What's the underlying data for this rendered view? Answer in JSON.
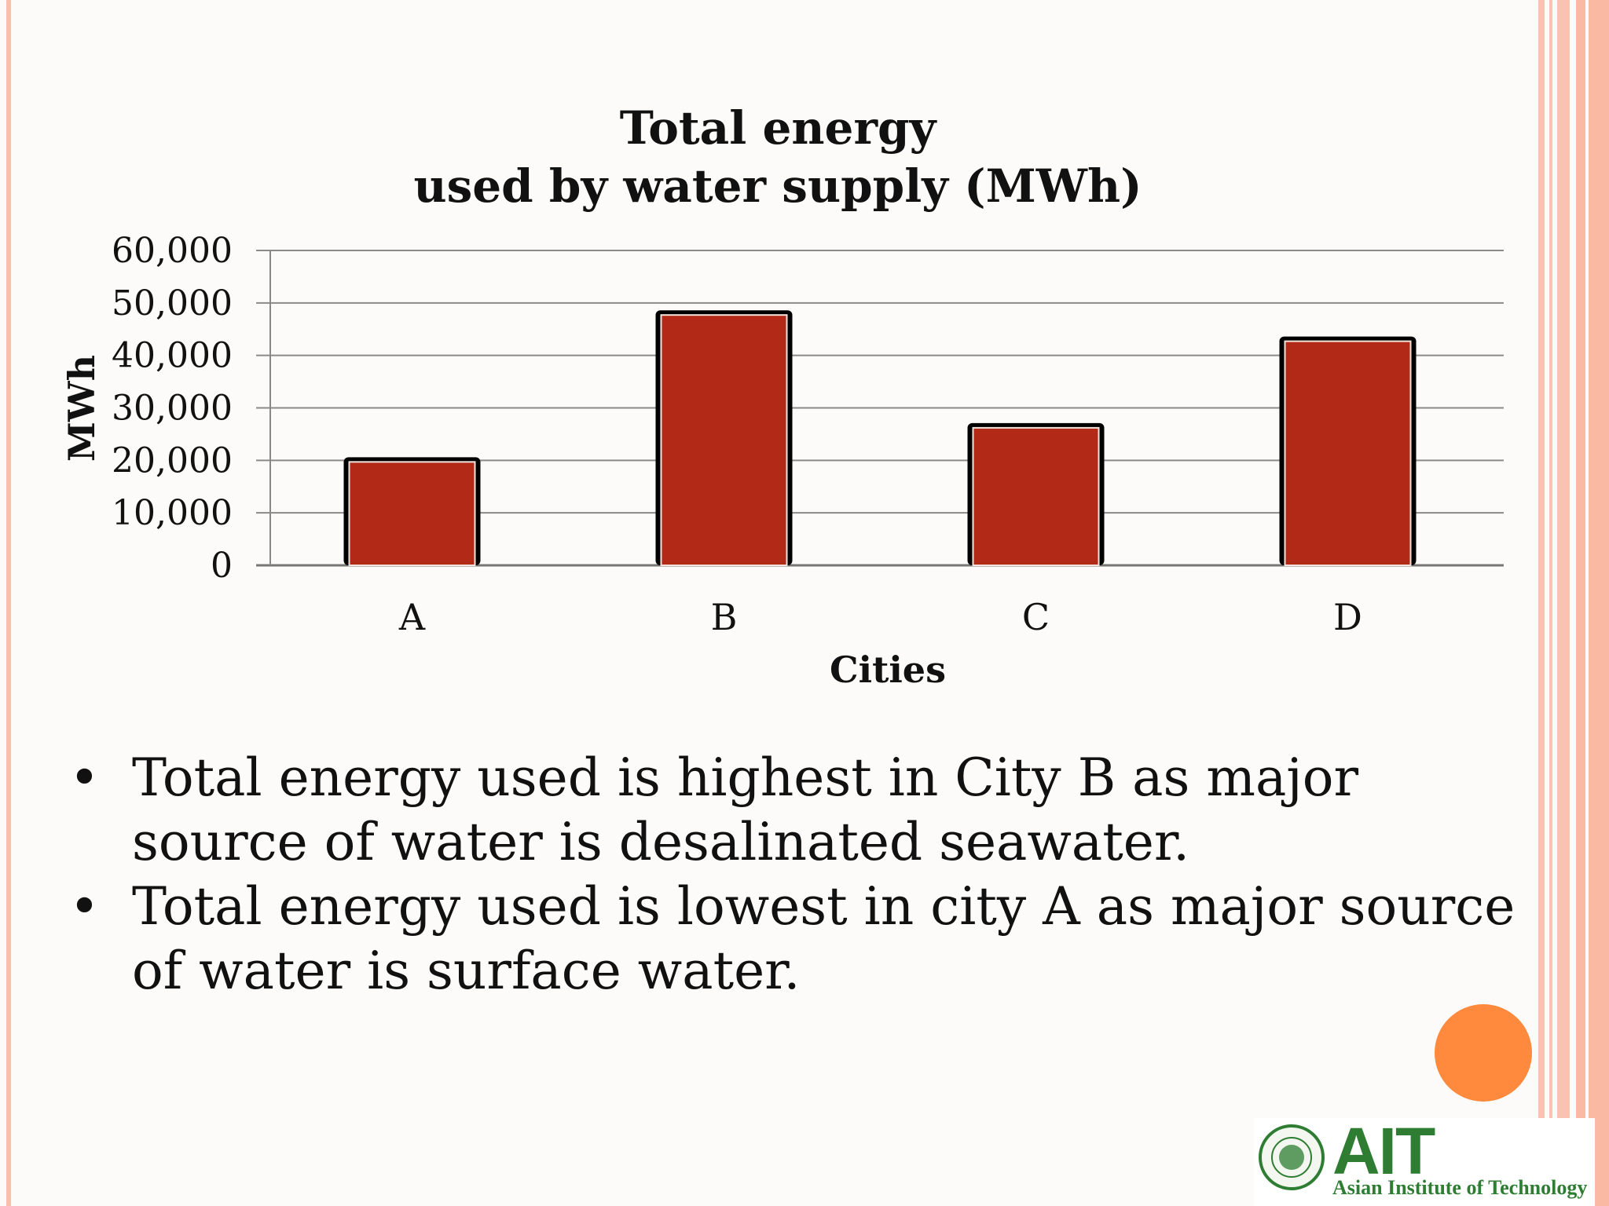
{
  "chart_data": {
    "type": "bar",
    "title": [
      "Total energy",
      "used by water supply (MWh)"
    ],
    "xlabel": "Cities",
    "ylabel": "MWh",
    "categories": [
      "A",
      "B",
      "C",
      "D"
    ],
    "values": [
      20000,
      48000,
      26500,
      43000
    ],
    "ylim": [
      0,
      60000
    ],
    "yticks": [
      "0",
      "10,000",
      "20,000",
      "30,000",
      "40,000",
      "50,000",
      "60,000"
    ],
    "grid": true,
    "bar_color": "#b22a17"
  },
  "bullets": [
    "Total energy used is highest in City B as major source of water is desalinated seawater.",
    "Total energy used is lowest in city A as major source of water is surface water."
  ],
  "bullet_symbol": "•",
  "logo": {
    "mark": "AIT",
    "name": "Asian Institute of Technology",
    "color": "#2e7d32"
  },
  "accent_color": "#ff8a3d"
}
